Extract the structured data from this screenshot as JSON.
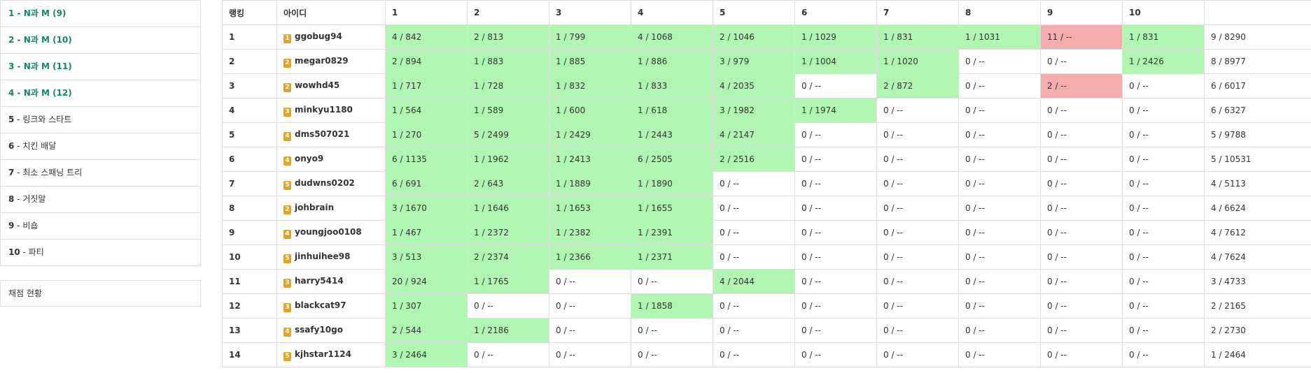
{
  "sidebar": {
    "problems": [
      {
        "num": "1",
        "title": "N과 M (9)",
        "solved": true
      },
      {
        "num": "2",
        "title": "N과 M (10)",
        "solved": true
      },
      {
        "num": "3",
        "title": "N과 M (11)",
        "solved": true
      },
      {
        "num": "4",
        "title": "N과 M (12)",
        "solved": true
      },
      {
        "num": "5",
        "title": "링크와 스타트",
        "solved": false
      },
      {
        "num": "6",
        "title": "치킨 배달",
        "solved": false
      },
      {
        "num": "7",
        "title": "최소 스패닝 트리",
        "solved": false
      },
      {
        "num": "8",
        "title": "거짓말",
        "solved": false
      },
      {
        "num": "9",
        "title": "비숍",
        "solved": false
      },
      {
        "num": "10",
        "title": "파티",
        "solved": false
      }
    ],
    "separator": " - ",
    "status_label": "채점 현황"
  },
  "board": {
    "headers": [
      "랭킹",
      "아이디",
      "1",
      "2",
      "3",
      "4",
      "5",
      "6",
      "7",
      "8",
      "9",
      "10",
      ""
    ],
    "rows": [
      {
        "rank": "1",
        "tier": "1",
        "user": "ggobug94",
        "cells": [
          "4 / 842",
          "2 / 813",
          "1 / 799",
          "4 / 1068",
          "2 / 1046",
          "1 / 1029",
          "1 / 831",
          "1 / 1031",
          "11 / --",
          "1 / 831"
        ],
        "status": [
          "ac",
          "ac",
          "ac",
          "ac",
          "ac",
          "ac",
          "ac",
          "ac",
          "wa",
          "ac"
        ],
        "total": "9 / 8290"
      },
      {
        "rank": "2",
        "tier": "2",
        "user": "megar0829",
        "cells": [
          "2 / 894",
          "1 / 883",
          "1 / 885",
          "1 / 886",
          "3 / 979",
          "1 / 1004",
          "1 / 1020",
          "0 / --",
          "0 / --",
          "1 / 2426"
        ],
        "status": [
          "ac",
          "ac",
          "ac",
          "ac",
          "ac",
          "ac",
          "ac",
          "",
          "",
          "ac"
        ],
        "total": "8 / 8977"
      },
      {
        "rank": "3",
        "tier": "2",
        "user": "wowhd45",
        "cells": [
          "1 / 717",
          "1 / 728",
          "1 / 832",
          "1 / 833",
          "4 / 2035",
          "0 / --",
          "2 / 872",
          "0 / --",
          "2 / --",
          "0 / --"
        ],
        "status": [
          "ac",
          "ac",
          "ac",
          "ac",
          "ac",
          "",
          "ac",
          "",
          "wa",
          ""
        ],
        "total": "6 / 6017"
      },
      {
        "rank": "4",
        "tier": "3",
        "user": "minkyu1180",
        "cells": [
          "1 / 564",
          "1 / 589",
          "1 / 600",
          "1 / 618",
          "3 / 1982",
          "1 / 1974",
          "0 / --",
          "0 / --",
          "0 / --",
          "0 / --"
        ],
        "status": [
          "ac",
          "ac",
          "ac",
          "ac",
          "ac",
          "ac",
          "",
          "",
          "",
          ""
        ],
        "total": "6 / 6327"
      },
      {
        "rank": "5",
        "tier": "4",
        "user": "dms507021",
        "cells": [
          "1 / 270",
          "5 / 2499",
          "1 / 2429",
          "1 / 2443",
          "4 / 2147",
          "0 / --",
          "0 / --",
          "0 / --",
          "0 / --",
          "0 / --"
        ],
        "status": [
          "ac",
          "ac",
          "ac",
          "ac",
          "ac",
          "",
          "",
          "",
          "",
          ""
        ],
        "total": "5 / 9788"
      },
      {
        "rank": "6",
        "tier": "4",
        "user": "onyo9",
        "cells": [
          "6 / 1135",
          "1 / 1962",
          "1 / 2413",
          "6 / 2505",
          "2 / 2516",
          "0 / --",
          "0 / --",
          "0 / --",
          "0 / --",
          "0 / --"
        ],
        "status": [
          "ac",
          "ac",
          "ac",
          "ac",
          "ac",
          "",
          "",
          "",
          "",
          ""
        ],
        "total": "5 / 10531"
      },
      {
        "rank": "7",
        "tier": "5",
        "user": "dudwns0202",
        "cells": [
          "6 / 691",
          "2 / 643",
          "1 / 1889",
          "1 / 1890",
          "0 / --",
          "0 / --",
          "0 / --",
          "0 / --",
          "0 / --",
          "0 / --"
        ],
        "status": [
          "ac",
          "ac",
          "ac",
          "ac",
          "",
          "",
          "",
          "",
          "",
          ""
        ],
        "total": "4 / 5113"
      },
      {
        "rank": "8",
        "tier": "2",
        "user": "johbrain",
        "cells": [
          "3 / 1670",
          "1 / 1646",
          "1 / 1653",
          "1 / 1655",
          "0 / --",
          "0 / --",
          "0 / --",
          "0 / --",
          "0 / --",
          "0 / --"
        ],
        "status": [
          "ac",
          "ac",
          "ac",
          "ac",
          "",
          "",
          "",
          "",
          "",
          ""
        ],
        "total": "4 / 6624"
      },
      {
        "rank": "9",
        "tier": "4",
        "user": "youngjoo0108",
        "cells": [
          "1 / 467",
          "1 / 2372",
          "1 / 2382",
          "1 / 2391",
          "0 / --",
          "0 / --",
          "0 / --",
          "0 / --",
          "0 / --",
          "0 / --"
        ],
        "status": [
          "ac",
          "ac",
          "ac",
          "ac",
          "",
          "",
          "",
          "",
          "",
          ""
        ],
        "total": "4 / 7612"
      },
      {
        "rank": "10",
        "tier": "5",
        "user": "jinhuihee98",
        "cells": [
          "3 / 513",
          "2 / 2374",
          "1 / 2366",
          "1 / 2371",
          "0 / --",
          "0 / --",
          "0 / --",
          "0 / --",
          "0 / --",
          "0 / --"
        ],
        "status": [
          "ac",
          "ac",
          "ac",
          "ac",
          "",
          "",
          "",
          "",
          "",
          ""
        ],
        "total": "4 / 7624"
      },
      {
        "rank": "11",
        "tier": "3",
        "user": "harry5414",
        "cells": [
          "20 / 924",
          "1 / 1765",
          "0 / --",
          "0 / --",
          "4 / 2044",
          "0 / --",
          "0 / --",
          "0 / --",
          "0 / --",
          "0 / --"
        ],
        "status": [
          "ac",
          "ac",
          "",
          "",
          "ac",
          "",
          "",
          "",
          "",
          ""
        ],
        "total": "3 / 4733"
      },
      {
        "rank": "12",
        "tier": "3",
        "user": "blackcat97",
        "cells": [
          "1 / 307",
          "0 / --",
          "0 / --",
          "1 / 1858",
          "0 / --",
          "0 / --",
          "0 / --",
          "0 / --",
          "0 / --",
          "0 / --"
        ],
        "status": [
          "ac",
          "",
          "",
          "ac",
          "",
          "",
          "",
          "",
          "",
          ""
        ],
        "total": "2 / 2165"
      },
      {
        "rank": "13",
        "tier": "4",
        "user": "ssafy10go",
        "cells": [
          "2 / 544",
          "1 / 2186",
          "0 / --",
          "0 / --",
          "0 / --",
          "0 / --",
          "0 / --",
          "0 / --",
          "0 / --",
          "0 / --"
        ],
        "status": [
          "ac",
          "ac",
          "",
          "",
          "",
          "",
          "",
          "",
          "",
          ""
        ],
        "total": "2 / 2730"
      },
      {
        "rank": "14",
        "tier": "5",
        "user": "kjhstar1124",
        "cells": [
          "3 / 2464",
          "0 / --",
          "0 / --",
          "0 / --",
          "0 / --",
          "0 / --",
          "0 / --",
          "0 / --",
          "0 / --",
          "0 / --"
        ],
        "status": [
          "ac",
          "",
          "",
          "",
          "",
          "",
          "",
          "",
          "",
          ""
        ],
        "total": "1 / 2464"
      }
    ]
  },
  "colors": {
    "accepted": "#b0f5b0",
    "wrong": "#f4acac",
    "solved_link": "#13856b",
    "tier_badge": "#e8a317"
  }
}
